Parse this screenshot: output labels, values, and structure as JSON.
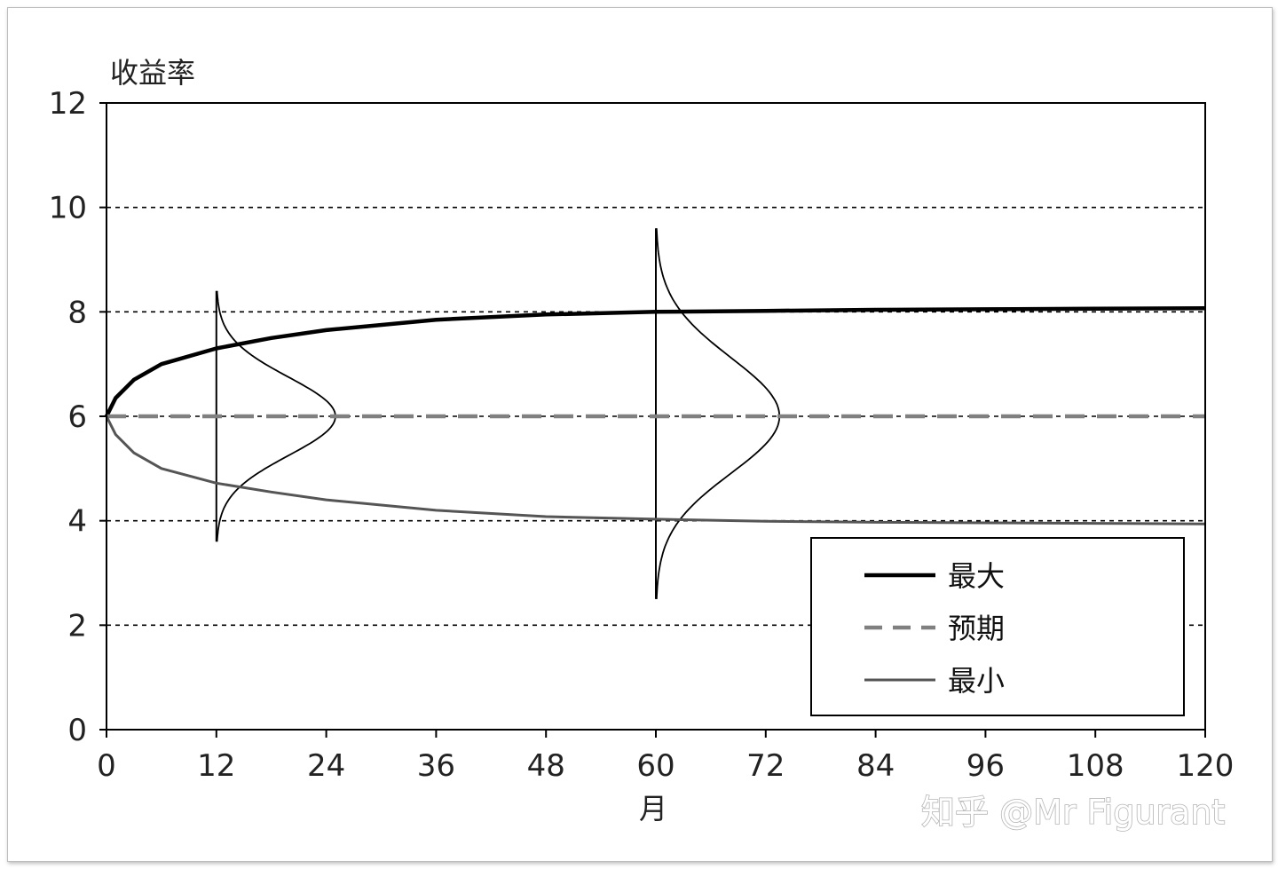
{
  "chart_data": {
    "type": "line",
    "ylabel": "收益率",
    "xlabel": "月",
    "xlim": [
      0,
      120
    ],
    "ylim": [
      0,
      12
    ],
    "x_ticks": [
      0,
      12,
      24,
      36,
      48,
      60,
      72,
      84,
      96,
      108,
      120
    ],
    "y_ticks": [
      0,
      2,
      4,
      6,
      8,
      10,
      12
    ],
    "grid": "horizontal-dashed",
    "legend_position": "bottom-right",
    "series": [
      {
        "name": "最大",
        "style": "solid-thick",
        "color": "#000000",
        "x": [
          0,
          1,
          3,
          6,
          12,
          18,
          24,
          36,
          48,
          60,
          72,
          84,
          96,
          108,
          120
        ],
        "values": [
          6.0,
          6.35,
          6.7,
          7.0,
          7.3,
          7.5,
          7.65,
          7.85,
          7.95,
          8.0,
          8.02,
          8.04,
          8.05,
          8.06,
          8.07
        ]
      },
      {
        "name": "预期",
        "style": "dashed",
        "color": "#808080",
        "x": [
          0,
          120
        ],
        "values": [
          6.0,
          6.0
        ]
      },
      {
        "name": "最小",
        "style": "solid-thin",
        "color": "#555555",
        "x": [
          0,
          1,
          3,
          6,
          12,
          18,
          24,
          36,
          48,
          60,
          72,
          84,
          96,
          108,
          120
        ],
        "values": [
          6.0,
          5.65,
          5.3,
          5.0,
          4.72,
          4.55,
          4.4,
          4.2,
          4.08,
          4.03,
          3.99,
          3.97,
          3.96,
          3.95,
          3.94
        ]
      }
    ],
    "distributions": [
      {
        "x": 12,
        "y_min": 3.6,
        "y_max": 8.4,
        "mean": 6.0,
        "peak_width": 13
      },
      {
        "x": 60,
        "y_min": 2.5,
        "y_max": 9.6,
        "mean": 6.0,
        "peak_width": 13.5
      }
    ],
    "watermark": "知乎 @Mr Figurant"
  }
}
